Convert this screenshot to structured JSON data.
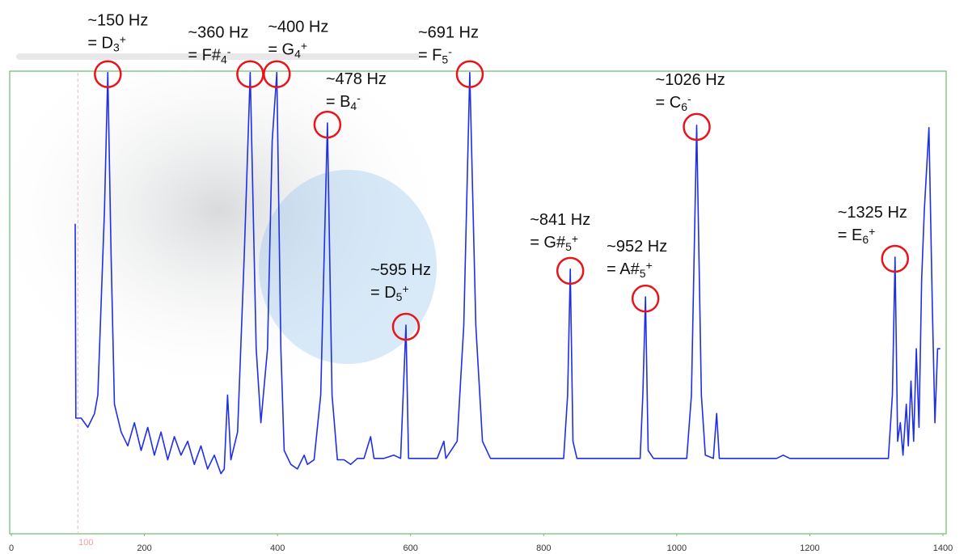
{
  "chart_data": {
    "type": "line",
    "color": "#1f2fe8",
    "xlim": [
      0,
      1400
    ],
    "ylim": [
      0,
      100
    ],
    "xticks": [
      0,
      200,
      400,
      600,
      800,
      1000,
      1200,
      1400
    ],
    "cursor": 100,
    "x": [
      96,
      97,
      105,
      115,
      125,
      130,
      140,
      145,
      150,
      155,
      165,
      175,
      185,
      195,
      205,
      215,
      225,
      235,
      245,
      255,
      265,
      275,
      285,
      295,
      305,
      315,
      320,
      325,
      330,
      340,
      350,
      359,
      368,
      375,
      385,
      392,
      399,
      405,
      410,
      420,
      430,
      440,
      445,
      455,
      465,
      475,
      482,
      490,
      500,
      510,
      520,
      530,
      540,
      545,
      560,
      575,
      585,
      593,
      597,
      610,
      640,
      650,
      653,
      670,
      680,
      689,
      698,
      708,
      720,
      780,
      830,
      836,
      840,
      844,
      850,
      900,
      945,
      949,
      953,
      957,
      965,
      1015,
      1022,
      1030,
      1037,
      1043,
      1055,
      1060,
      1064,
      1130,
      1150,
      1160,
      1170,
      1300,
      1318,
      1324,
      1328,
      1332,
      1336,
      1340,
      1345,
      1348,
      1352,
      1356,
      1360,
      1364,
      1368,
      1372,
      1379,
      1384,
      1388,
      1392,
      1396
    ],
    "values": [
      67,
      25,
      25,
      23,
      26,
      30,
      70,
      99.7,
      60,
      28,
      22,
      19,
      24,
      18,
      23,
      17,
      22,
      16,
      21,
      17,
      20,
      15,
      19,
      14,
      17,
      13,
      14,
      30,
      16,
      22,
      60,
      99.7,
      40,
      24,
      40,
      85,
      99.7,
      40,
      18,
      15,
      14,
      17,
      15,
      16,
      30,
      88.8,
      30,
      16,
      16,
      15,
      16.3,
      16.3,
      21,
      16.3,
      16.3,
      17,
      16.3,
      45.1,
      16.3,
      16.3,
      16.3,
      20,
      16.3,
      20,
      45,
      99.7,
      45,
      20,
      16.3,
      16.3,
      16.3,
      30,
      57.2,
      20,
      16.3,
      16.3,
      16.3,
      30,
      51.2,
      18,
      16.3,
      16.3,
      30,
      88.3,
      30,
      17,
      16.3,
      26,
      16.3,
      16.3,
      16.3,
      17,
      16.3,
      16.3,
      16.3,
      30,
      59.8,
      20,
      24,
      17,
      28,
      19,
      33,
      20,
      40,
      23,
      55,
      70,
      87.8,
      50,
      24,
      40,
      40
    ],
    "annotations": [
      {
        "freq": "~150 Hz",
        "note": "= D",
        "octave": "3",
        "sign": "+",
        "x": 145,
        "y": 99.7
      },
      {
        "freq": "~360 Hz",
        "note": "= F#",
        "octave": "4",
        "sign": "-",
        "x": 359,
        "y": 99.7
      },
      {
        "freq": "~400 Hz",
        "note": "= G",
        "octave": "4",
        "sign": "+",
        "x": 399,
        "y": 99.7
      },
      {
        "freq": "~478 Hz",
        "note": "= B",
        "octave": "4",
        "sign": "-",
        "x": 475,
        "y": 88.8
      },
      {
        "freq": "~595 Hz",
        "note": "= D",
        "octave": "5",
        "sign": "+",
        "x": 593,
        "y": 45.1
      },
      {
        "freq": "~691 Hz",
        "note": "= F",
        "octave": "5",
        "sign": "-",
        "x": 689,
        "y": 99.7
      },
      {
        "freq": "~841 Hz",
        "note": "= G#",
        "octave": "5",
        "sign": "+",
        "x": 840,
        "y": 57.2
      },
      {
        "freq": "~952 Hz",
        "note": "= A#",
        "octave": "5",
        "sign": "+",
        "x": 953,
        "y": 51.2
      },
      {
        "freq": "~1026 Hz",
        "note": "= C",
        "octave": "6",
        "sign": "-",
        "x": 1030,
        "y": 88.3
      },
      {
        "freq": "~1325 Hz",
        "note": "= E",
        "octave": "6",
        "sign": "+",
        "x": 1328,
        "y": 59.8
      }
    ]
  }
}
